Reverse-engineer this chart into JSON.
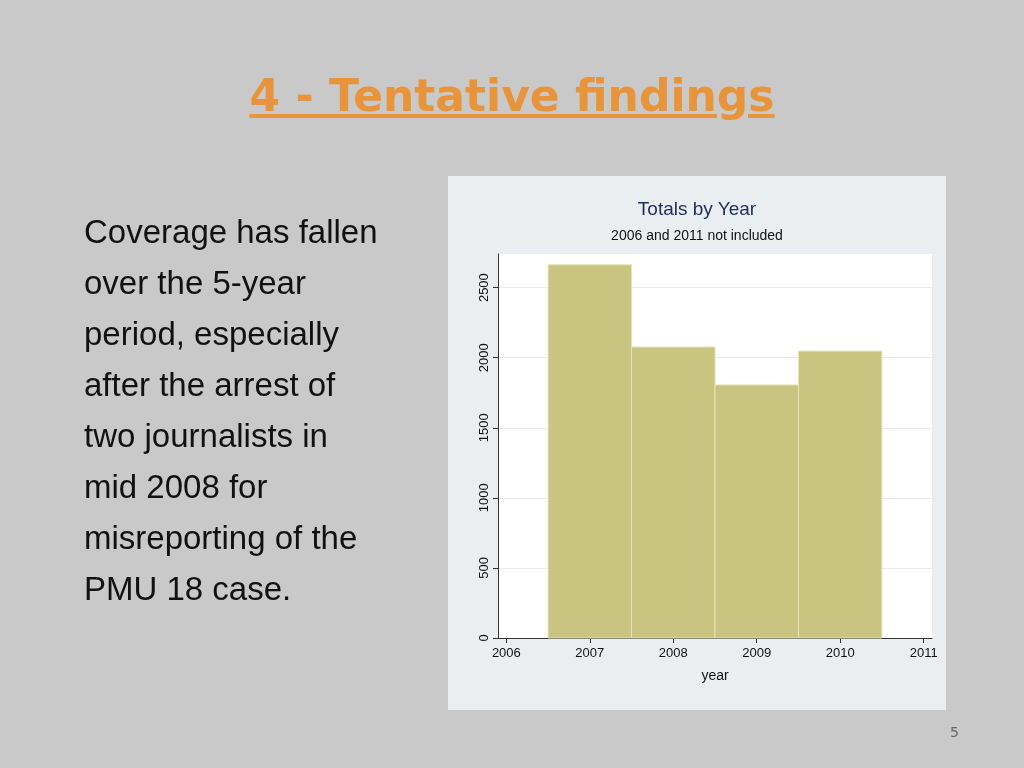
{
  "chart_data": {
    "type": "histogram",
    "title": "Totals by Year",
    "subtitle": "2006 and 2011 not included",
    "xlabel": "year",
    "bins": [
      2006.5,
      2007.5,
      2008.5,
      2009.5,
      2010.5
    ],
    "values": [
      2663,
      2076,
      1806,
      2047
    ],
    "color": "#c9c47f",
    "xlim": [
      2005.9,
      2011.1
    ],
    "xticks": [
      2006,
      2007,
      2008,
      2009,
      2010,
      2011
    ],
    "ylim": [
      0,
      2740
    ],
    "yticks": [
      0,
      500,
      1000,
      1500,
      2000,
      2500
    ],
    "grid": "y",
    "annotations": [
      "4 - Tentative findings",
      "Coverage has fallen over the 5-year period, especially after the arrest of two journalists in mid 2008 for misreporting of the PMU 18 case.",
      "5"
    ]
  }
}
